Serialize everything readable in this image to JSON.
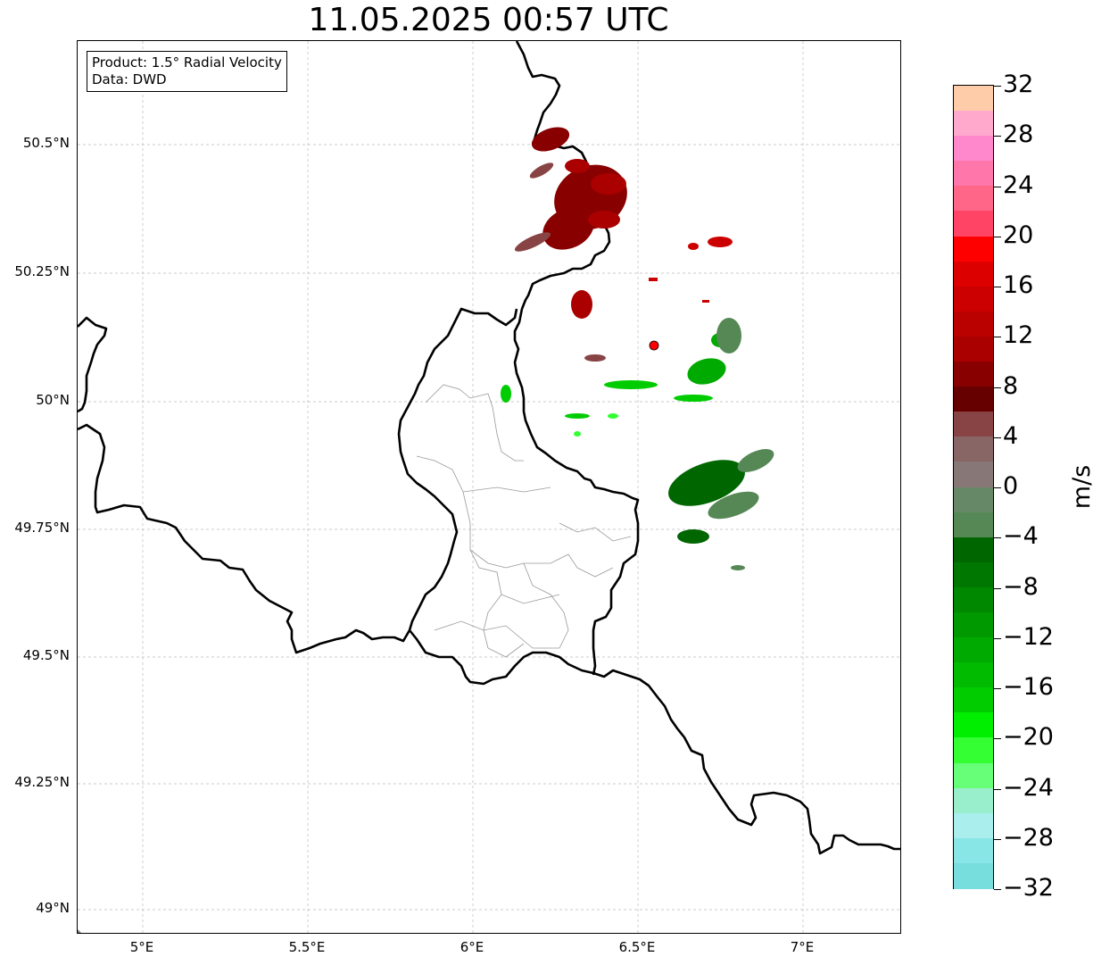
{
  "title": "11.05.2025 00:57 UTC",
  "info": {
    "product": "Product: 1.5° Radial Velocity",
    "data": "Data: DWD"
  },
  "axes": {
    "lat_labels": [
      "50.5°N",
      "50.25°N",
      "50°N",
      "49.75°N",
      "49.5°N",
      "49.25°N",
      "49°N"
    ],
    "lon_labels": [
      "5°E",
      "5.5°E",
      "6°E",
      "6.5°E",
      "7°E"
    ]
  },
  "colorbar": {
    "unit": "m/s",
    "tick_labels": [
      "32",
      "28",
      "24",
      "20",
      "16",
      "12",
      "8",
      "4",
      "0",
      "−4",
      "−8",
      "−12",
      "−16",
      "−20",
      "−24",
      "−28",
      "−32"
    ],
    "colors": [
      "#ffccaa",
      "#ffaacc",
      "#ff88cc",
      "#ff77aa",
      "#ff6688",
      "#ff4466",
      "#ff0000",
      "#dd0000",
      "#cc0000",
      "#bb0000",
      "#aa0000",
      "#880000",
      "#660000",
      "#884444",
      "#886666",
      "#887777",
      "#668866",
      "#558855",
      "#006600",
      "#007700",
      "#008800",
      "#009900",
      "#00aa00",
      "#00bb00",
      "#00cc00",
      "#00ee00",
      "#33ff33",
      "#66ff77",
      "#99eecc",
      "#aaeeee",
      "#88e6e6",
      "#77dddd"
    ]
  },
  "radar_site_color": "#ff0000"
}
